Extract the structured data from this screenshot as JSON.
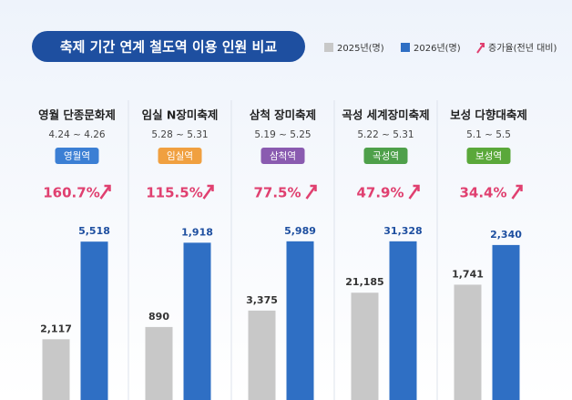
{
  "header": {
    "title": "축제 기간 연계 철도역 이용 인원 비교",
    "growth_legend": "증가율(전년 대비)",
    "growth_color": "#e04070"
  },
  "chart_data": [
    {
      "type": "bar",
      "title": "영월 단종문화제",
      "subtitle": "4.24 ~ 4.26",
      "station": "영월역",
      "station_color": "#3b7fd4",
      "growth": {
        "value": 160.7,
        "label": "160.7%"
      },
      "ylim": [
        0,
        6000
      ],
      "series": [
        {
          "name": "2025년(명)",
          "color": "#c8c8c8",
          "values": [
            2117
          ],
          "value_labels": [
            "2,117"
          ]
        },
        {
          "name": "2026년(명)",
          "color": "#2f6fc4",
          "values": [
            5518
          ],
          "value_labels": [
            "5,518"
          ]
        }
      ]
    },
    {
      "type": "bar",
      "title": "임실 N장미축제",
      "subtitle": "5.28 ~ 5.31",
      "station": "임실역",
      "station_color": "#f0a040",
      "growth": {
        "value": 115.5,
        "label": "115.5%"
      },
      "ylim": [
        0,
        2100
      ],
      "series": [
        {
          "name": "2025년(명)",
          "color": "#c8c8c8",
          "values": [
            890
          ],
          "value_labels": [
            "890"
          ]
        },
        {
          "name": "2026년(명)",
          "color": "#2f6fc4",
          "values": [
            1918
          ],
          "value_labels": [
            "1,918"
          ]
        }
      ]
    },
    {
      "type": "bar",
      "title": "삼척 장미축제",
      "subtitle": "5.19 ~ 5.25",
      "station": "삼척역",
      "station_color": "#8a5bb0",
      "growth": {
        "value": 77.5,
        "label": "77.5%"
      },
      "ylim": [
        0,
        6500
      ],
      "series": [
        {
          "name": "2025년(명)",
          "color": "#c8c8c8",
          "values": [
            3375
          ],
          "value_labels": [
            "3,375"
          ]
        },
        {
          "name": "2026년(명)",
          "color": "#2f6fc4",
          "values": [
            5989
          ],
          "value_labels": [
            "5,989"
          ]
        }
      ]
    },
    {
      "type": "bar",
      "title": "곡성 세계장미축제",
      "subtitle": "5.22 ~ 5.31",
      "station": "곡성역",
      "station_color": "#4ea04a",
      "growth": {
        "value": 47.9,
        "label": "47.9%"
      },
      "ylim": [
        0,
        34000
      ],
      "series": [
        {
          "name": "2025년(명)",
          "color": "#c8c8c8",
          "values": [
            21185
          ],
          "value_labels": [
            "21,185"
          ]
        },
        {
          "name": "2026년(명)",
          "color": "#2f6fc4",
          "values": [
            31328
          ],
          "value_labels": [
            "31,328"
          ]
        }
      ]
    },
    {
      "type": "bar",
      "title": "보성 다향대축제",
      "subtitle": "5.1 ~ 5.5",
      "station": "보성역",
      "station_color": "#5aa83a",
      "growth": {
        "value": 34.4,
        "label": "34.4%"
      },
      "ylim": [
        0,
        2600
      ],
      "series": [
        {
          "name": "2025년(명)",
          "color": "#c8c8c8",
          "values": [
            1741
          ],
          "value_labels": [
            "1,741"
          ]
        },
        {
          "name": "2026년(명)",
          "color": "#2f6fc4",
          "values": [
            2340
          ],
          "value_labels": [
            "2,340"
          ]
        }
      ]
    }
  ]
}
